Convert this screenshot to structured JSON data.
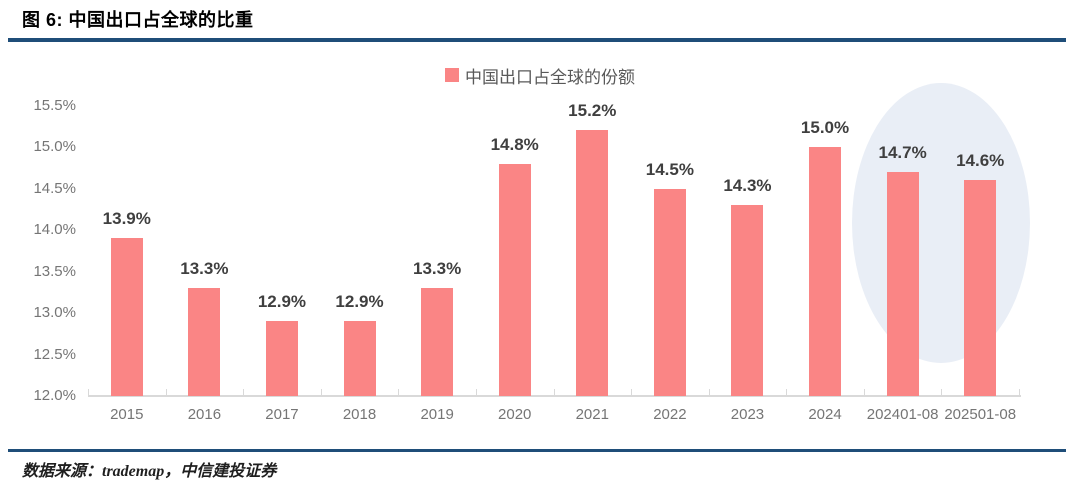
{
  "header": {
    "figure_title": "图 6: 中国出口占全球的比重"
  },
  "legend": {
    "label": "中国出口占全球的份额"
  },
  "footer": {
    "source": "数据来源：trademap，中信建投证券"
  },
  "colors": {
    "bar": "#FA8585",
    "rule": "#1F4E79",
    "highlight_ellipse": "#E9EEF6",
    "axis_line": "#D9D9D9",
    "axis_text": "#757575",
    "value_text": "#3F3F3F",
    "legend_text": "#595959"
  },
  "chart_data": {
    "type": "bar",
    "title": "中国出口占全球的比重",
    "series_name": "中国出口占全球的份额",
    "categories": [
      "2015",
      "2016",
      "2017",
      "2018",
      "2019",
      "2020",
      "2021",
      "2022",
      "2023",
      "2024",
      "202401-08",
      "202501-08"
    ],
    "values": [
      13.9,
      13.3,
      12.9,
      12.9,
      13.3,
      14.8,
      15.2,
      14.5,
      14.3,
      15.0,
      14.7,
      14.6
    ],
    "data_labels": [
      "13.9%",
      "13.3%",
      "12.9%",
      "12.9%",
      "13.3%",
      "14.8%",
      "15.2%",
      "14.5%",
      "14.3%",
      "15.0%",
      "14.7%",
      "14.6%"
    ],
    "xlabel": "",
    "ylabel": "",
    "ylim": [
      12.0,
      15.5
    ],
    "ytick_step": 0.5,
    "ytick_labels": [
      "12.0%",
      "12.5%",
      "13.0%",
      "13.5%",
      "14.0%",
      "14.5%",
      "15.0%",
      "15.5%"
    ],
    "grid": false,
    "legend_position": "top-center",
    "highlight": {
      "type": "ellipse",
      "categories": [
        "202401-08",
        "202501-08"
      ]
    }
  }
}
